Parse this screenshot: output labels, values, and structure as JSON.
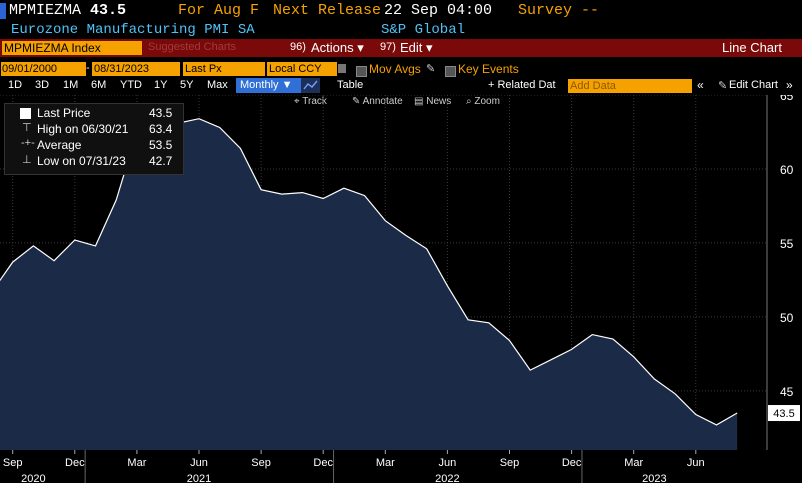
{
  "header": {
    "ticker": "MPMIEZMA",
    "last_value": "43.5",
    "for_label": "For Aug F",
    "next_release_label": "Next Release",
    "next_release_value": "22 Sep 04:00",
    "survey_label": "Survey --",
    "description": "Eurozone Manufacturing PMI SA",
    "source": "S&P Global"
  },
  "toolbar": {
    "security": "MPMIEZMA Index",
    "suggested_charts": "Suggested Charts",
    "actions_num": "96)",
    "actions_label": "Actions ▾",
    "edit_num": "97)",
    "edit_label": "Edit ▾",
    "chart_type": "Line Chart"
  },
  "controls": {
    "start_date": "09/01/2000",
    "end_date": "08/31/2023",
    "field": "Last Px",
    "currency": "Local CCY",
    "mov_avgs": "Mov Avgs",
    "key_events": "Key Events"
  },
  "periods": [
    "1D",
    "3D",
    "1M",
    "6M",
    "YTD",
    "1Y",
    "5Y",
    "Max"
  ],
  "frequency": "Monthly ▼",
  "table_label": "Table",
  "related_data": "+ Related Dat",
  "add_data_placeholder": "Add Data",
  "edit_chart": "Edit Chart",
  "tools": [
    "Track",
    "Annotate",
    "News",
    "Zoom"
  ],
  "legend": {
    "last_price_label": "Last Price",
    "last_price_value": "43.5",
    "high_label": "High on 06/30/21",
    "high_value": "63.4",
    "avg_label": "Average",
    "avg_value": "53.5",
    "low_label": "Low on 07/31/23",
    "low_value": "42.7"
  },
  "colors": {
    "accent": "#f5a100",
    "line": "#ffffff",
    "fill": "#1b2b47",
    "header_bar": "#7a0a0a"
  },
  "chart_data": {
    "type": "area",
    "title": "",
    "xlabel": "",
    "ylabel": "",
    "ylim": [
      41,
      65
    ],
    "y_ticks": [
      45,
      50,
      55,
      60,
      65
    ],
    "x_tick_labels": [
      "Sep",
      "Dec",
      "Mar",
      "Jun",
      "Sep",
      "Dec",
      "Mar",
      "Jun",
      "Sep",
      "Dec",
      "Mar",
      "Jun"
    ],
    "year_labels": [
      "2020",
      "2021",
      "2022",
      "2023"
    ],
    "last_value_label": "43.5",
    "series": [
      {
        "x": [
          "2020-08",
          "2020-09",
          "2020-10",
          "2020-11",
          "2020-12",
          "2021-01",
          "2021-02",
          "2021-03",
          "2021-04",
          "2021-05",
          "2021-06",
          "2021-07",
          "2021-08",
          "2021-09",
          "2021-10",
          "2021-11",
          "2021-12",
          "2022-01",
          "2022-02",
          "2022-03",
          "2022-04",
          "2022-05",
          "2022-06",
          "2022-07",
          "2022-08",
          "2022-09",
          "2022-10",
          "2022-11",
          "2022-12",
          "2023-01",
          "2023-02",
          "2023-03",
          "2023-04",
          "2023-05",
          "2023-06",
          "2023-07",
          "2023-08"
        ],
        "values": [
          51.7,
          53.7,
          54.8,
          53.8,
          55.2,
          54.8,
          57.9,
          62.5,
          62.9,
          63.1,
          63.4,
          62.8,
          61.4,
          58.6,
          58.3,
          58.4,
          58.0,
          58.7,
          58.2,
          56.5,
          55.5,
          54.6,
          52.1,
          49.8,
          49.6,
          48.4,
          46.4,
          47.1,
          47.8,
          48.8,
          48.5,
          47.3,
          45.8,
          44.8,
          43.4,
          42.7,
          43.5
        ]
      }
    ]
  }
}
